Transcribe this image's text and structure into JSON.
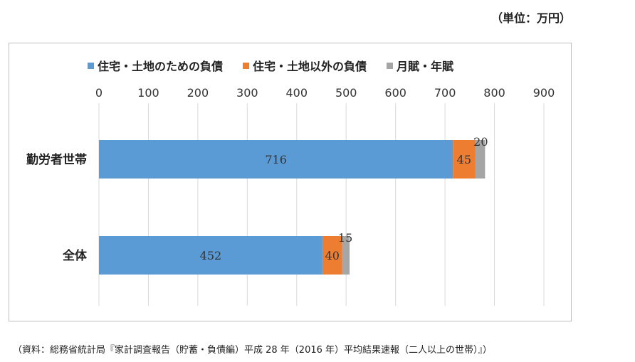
{
  "unit_label": "（単位：万円）",
  "source_note": "（資料：総務省統計局『家計調査報告（貯蓄・負債編）平成 28 年（2016 年）平均結果速報（二人以上の世帯）』）",
  "legend": [
    {
      "name": "住宅・土地のための負債",
      "color": "#5b9bd5"
    },
    {
      "name": "住宅・土地以外の負債",
      "color": "#ed7d31"
    },
    {
      "name": "月賦・年賦",
      "color": "#a5a5a5"
    }
  ],
  "chart_data": {
    "type": "bar",
    "orientation": "horizontal",
    "stacked": true,
    "categories": [
      "勤労者世帯",
      "全体"
    ],
    "series": [
      {
        "name": "住宅・土地のための負債",
        "values": [
          716,
          452
        ],
        "color": "#5b9bd5"
      },
      {
        "name": "住宅・土地以外の負債",
        "values": [
          45,
          40
        ],
        "color": "#ed7d31"
      },
      {
        "name": "月賦・年賦",
        "values": [
          20,
          15
        ],
        "color": "#a5a5a5"
      }
    ],
    "xlim": [
      0,
      900
    ],
    "xticks": [
      0,
      100,
      200,
      300,
      400,
      500,
      600,
      700,
      800,
      900
    ],
    "grid": true,
    "legend_position": "top",
    "axis_position": "top"
  }
}
